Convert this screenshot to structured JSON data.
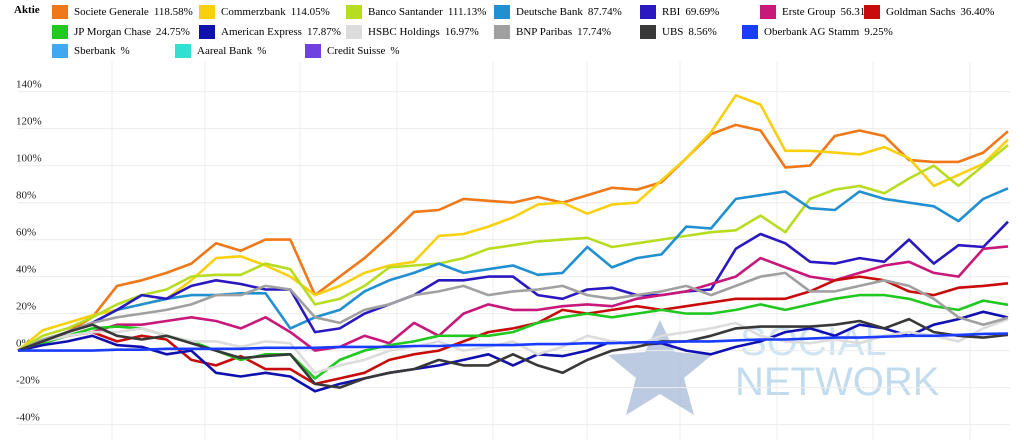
{
  "chart_data": {
    "type": "line",
    "header": "Aktie",
    "ylim": [
      -44,
      156
    ],
    "yticks": [
      {
        "value": 140,
        "label": "140%"
      },
      {
        "value": 120,
        "label": "120%"
      },
      {
        "value": 100,
        "label": "100%"
      },
      {
        "value": 80,
        "label": "80%"
      },
      {
        "value": 60,
        "label": "60%"
      },
      {
        "value": 40,
        "label": "40%"
      },
      {
        "value": 20,
        "label": "20%"
      },
      {
        "value": 0,
        "label": "0%"
      },
      {
        "value": -20,
        "label": "-20%"
      },
      {
        "value": -40,
        "label": "-40%"
      }
    ],
    "grid": true,
    "watermark": [
      "SOCIAL",
      "NETWORK"
    ],
    "series": [
      {
        "name": "Societe Generale",
        "legend_label": "118.58%",
        "color": "#f07818",
        "values": [
          0,
          5,
          10,
          18,
          35,
          38,
          42,
          47,
          58,
          54,
          60,
          60,
          30,
          40,
          50,
          62,
          75,
          76,
          82,
          81,
          80,
          83,
          80,
          84,
          88,
          87,
          91,
          104,
          117,
          122,
          119,
          99,
          100,
          116,
          119,
          116,
          103,
          102,
          102,
          107,
          118.58
        ]
      },
      {
        "name": "Commerzbank",
        "legend_label": "114.05%",
        "color": "#f8d010",
        "values": [
          0,
          11,
          15,
          19,
          22,
          25,
          28,
          38,
          50,
          51,
          46,
          40,
          30,
          35,
          42,
          46,
          48,
          62,
          63,
          67,
          72,
          79,
          80,
          74,
          79,
          80,
          92,
          104,
          118,
          138,
          133,
          108,
          108,
          107,
          106,
          110,
          104,
          89,
          95,
          101,
          114.05
        ]
      },
      {
        "name": "Banco Santander",
        "legend_label": "111.13%",
        "color": "#b8dc20",
        "values": [
          0,
          8,
          12,
          18,
          25,
          30,
          33,
          40,
          41,
          41,
          47,
          44,
          25,
          28,
          35,
          45,
          46,
          47,
          50,
          55,
          57,
          59,
          60,
          61,
          56,
          58,
          60,
          62,
          64,
          65,
          73,
          64,
          82,
          87,
          89,
          85,
          93,
          100,
          89,
          100,
          111.13
        ]
      },
      {
        "name": "Deutsche Bank",
        "legend_label": "87.74%",
        "color": "#2090d0",
        "values": [
          0,
          5,
          10,
          15,
          22,
          25,
          28,
          30,
          30,
          31,
          31,
          12,
          18,
          22,
          32,
          38,
          42,
          47,
          42,
          44,
          46,
          41,
          42,
          56,
          45,
          50,
          52,
          67,
          66,
          82,
          84,
          86,
          77,
          76,
          86,
          82,
          80,
          78,
          70,
          82,
          87.74
        ]
      },
      {
        "name": "RBI",
        "legend_label": "69.69%",
        "color": "#2a18c0",
        "values": [
          0,
          5,
          10,
          15,
          22,
          30,
          28,
          35,
          38,
          36,
          33,
          33,
          10,
          12,
          20,
          25,
          30,
          38,
          38,
          40,
          40,
          30,
          28,
          33,
          34,
          30,
          30,
          32,
          33,
          55,
          63,
          58,
          48,
          47,
          50,
          48,
          60,
          47,
          57,
          56,
          69.69
        ]
      },
      {
        "name": "Erste Group",
        "legend_label": "56.31%",
        "color": "#c8187a",
        "values": [
          0,
          4,
          8,
          10,
          14,
          14,
          16,
          18,
          16,
          12,
          18,
          10,
          0,
          2,
          8,
          4,
          15,
          8,
          20,
          25,
          22,
          22,
          24,
          25,
          24,
          28,
          30,
          32,
          36,
          40,
          50,
          45,
          40,
          38,
          42,
          46,
          48,
          42,
          40,
          55,
          56.31
        ]
      },
      {
        "name": "Goldman Sachs",
        "legend_label": "36.40%",
        "color": "#c80c0c",
        "values": [
          0,
          5,
          8,
          10,
          5,
          8,
          6,
          -5,
          -8,
          -3,
          -10,
          -10,
          -18,
          -15,
          -12,
          -5,
          -2,
          0,
          5,
          10,
          12,
          15,
          22,
          20,
          22,
          24,
          22,
          24,
          26,
          28,
          28,
          28,
          32,
          38,
          40,
          38,
          32,
          30,
          34,
          35,
          36.4
        ]
      },
      {
        "name": "JP Morgan Chase",
        "legend_label": "24.75%",
        "color": "#20c820",
        "values": [
          0,
          4,
          8,
          12,
          13,
          12,
          8,
          5,
          0,
          -5,
          -2,
          -2,
          -15,
          -5,
          0,
          3,
          5,
          8,
          8,
          8,
          10,
          15,
          18,
          20,
          18,
          20,
          22,
          20,
          20,
          22,
          25,
          22,
          25,
          28,
          30,
          30,
          28,
          24,
          22,
          27,
          24.75
        ]
      },
      {
        "name": "American Express",
        "legend_label": "17.87%",
        "color": "#1010b0",
        "values": [
          0,
          3,
          5,
          8,
          3,
          2,
          -2,
          0,
          -12,
          -14,
          -12,
          -14,
          -22,
          -18,
          -15,
          -12,
          -10,
          -8,
          -5,
          -2,
          -8,
          -2,
          -3,
          0,
          5,
          3,
          4,
          0,
          -2,
          2,
          5,
          10,
          12,
          8,
          14,
          12,
          8,
          14,
          17,
          21,
          17.87
        ]
      },
      {
        "name": "HSBC Holdings",
        "legend_label": "16.97%",
        "color": "#dcdcdc",
        "values": [
          0,
          5,
          8,
          10,
          10,
          12,
          8,
          5,
          5,
          2,
          5,
          4,
          -12,
          -8,
          -5,
          0,
          2,
          5,
          0,
          2,
          5,
          -2,
          2,
          8,
          5,
          3,
          8,
          10,
          12,
          15,
          8,
          5,
          4,
          6,
          4,
          8,
          10,
          8,
          5,
          12,
          16.97
        ]
      },
      {
        "name": "BNP Paribas",
        "legend_label": "17.74%",
        "color": "#a0a0a0",
        "values": [
          0,
          6,
          10,
          15,
          18,
          20,
          22,
          25,
          30,
          30,
          35,
          33,
          18,
          15,
          22,
          25,
          30,
          32,
          35,
          30,
          32,
          33,
          35,
          30,
          28,
          30,
          32,
          35,
          30,
          35,
          40,
          42,
          32,
          32,
          35,
          38,
          35,
          28,
          18,
          14,
          17.74
        ]
      },
      {
        "name": "UBS",
        "legend_label": "8.56%",
        "color": "#383838",
        "values": [
          0,
          5,
          10,
          14,
          8,
          6,
          8,
          4,
          0,
          -4,
          -3,
          -2,
          -18,
          -20,
          -15,
          -12,
          -10,
          -5,
          -8,
          -8,
          -2,
          -8,
          -12,
          -5,
          0,
          2,
          5,
          5,
          8,
          12,
          13,
          13,
          13,
          14,
          16,
          12,
          17,
          10,
          8,
          7,
          8.56
        ]
      },
      {
        "name": "Oberbank AG Stamm",
        "legend_label": "9.25%",
        "color": "#1a3cff",
        "values": [
          0,
          0,
          0,
          0,
          0.5,
          0.5,
          1,
          1,
          1,
          1,
          1.5,
          1.5,
          1.5,
          2,
          2,
          2,
          2.5,
          2.5,
          3,
          3,
          3,
          3.5,
          3.5,
          4,
          4,
          4.5,
          4.5,
          5,
          5,
          5.5,
          6,
          6,
          6.5,
          7,
          7,
          7.5,
          8,
          8,
          8.5,
          9,
          9.25
        ]
      },
      {
        "name": "Sberbank",
        "legend_label": "%",
        "color": "#40a8f0",
        "values": [
          null,
          null,
          null,
          null,
          null,
          null,
          null,
          null,
          null,
          null,
          null,
          null,
          null,
          null,
          null,
          null,
          null,
          null,
          null,
          null,
          null,
          null,
          null,
          null,
          null,
          null,
          null,
          null,
          null,
          null,
          null,
          null,
          null,
          null,
          null,
          null,
          null,
          null,
          null,
          null,
          null
        ]
      },
      {
        "name": "Aareal Bank",
        "legend_label": "%",
        "color": "#30e0d0",
        "values": [
          null,
          null,
          null,
          null,
          null,
          null,
          null,
          null,
          null,
          null,
          null,
          null,
          null,
          null,
          null,
          null,
          null,
          null,
          null,
          null,
          null,
          null,
          null,
          null,
          null,
          null,
          null,
          null,
          null,
          null,
          null,
          null,
          null,
          null,
          null,
          null,
          null,
          null,
          null,
          null,
          null
        ]
      },
      {
        "name": "Credit Suisse",
        "legend_label": "%",
        "color": "#7040e0",
        "values": [
          null,
          null,
          null,
          null,
          null,
          null,
          null,
          null,
          null,
          null,
          null,
          null,
          null,
          null,
          null,
          null,
          null,
          null,
          null,
          null,
          null,
          null,
          null,
          null,
          null,
          null,
          null,
          null,
          null,
          null,
          null,
          null,
          null,
          null,
          null,
          null,
          null,
          null,
          null,
          null,
          null
        ]
      }
    ]
  }
}
